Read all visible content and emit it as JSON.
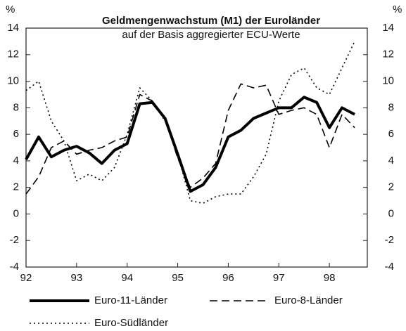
{
  "chart_data": {
    "type": "line",
    "title": "Geldmengenwachstum (M1) der Euroländer",
    "subtitle": "auf der Basis aggregierter ECU-Werte",
    "y_unit": "%",
    "y2_unit": "%",
    "x": [
      92,
      92.25,
      92.5,
      92.75,
      93,
      93.25,
      93.5,
      93.75,
      94,
      94.25,
      94.5,
      94.75,
      95,
      95.25,
      95.5,
      95.75,
      96,
      96.25,
      96.5,
      96.75,
      97,
      97.25,
      97.5,
      97.75,
      98,
      98.25,
      98.5
    ],
    "xlim": [
      92,
      98.75
    ],
    "xticks": [
      92,
      93,
      94,
      95,
      96,
      97,
      98
    ],
    "ylim": [
      -4,
      14
    ],
    "yticks": [
      -4,
      -2,
      0,
      2,
      4,
      6,
      8,
      10,
      12,
      14
    ],
    "y2lim": [
      -4,
      14
    ],
    "y2ticks": [
      -4,
      -2,
      0,
      2,
      4,
      6,
      8,
      10,
      12,
      14
    ],
    "series": [
      {
        "name": "Euro-11-Länder",
        "color": "#000000",
        "style": "solid",
        "values": [
          4.1,
          5.8,
          4.3,
          4.8,
          5.1,
          4.6,
          3.8,
          4.8,
          5.3,
          8.3,
          8.4,
          7.2,
          4.5,
          1.7,
          2.2,
          3.5,
          5.8,
          6.3,
          7.2,
          7.6,
          8.0,
          8.0,
          8.8,
          8.4,
          6.5,
          8.0,
          7.5
        ]
      },
      {
        "name": "Euro-8-Länder",
        "color": "#000000",
        "style": "dashed",
        "values": [
          1.5,
          2.8,
          5.0,
          5.5,
          4.5,
          4.8,
          5.0,
          5.5,
          5.8,
          9.0,
          8.5,
          7.2,
          4.2,
          2.0,
          2.7,
          3.8,
          7.8,
          9.8,
          9.5,
          9.7,
          7.5,
          7.8,
          8.0,
          7.5,
          5.0,
          7.5,
          6.5
        ]
      },
      {
        "name": "Euro-Südländer",
        "color": "#000000",
        "style": "dotted",
        "values": [
          9.3,
          10.0,
          7.0,
          5.5,
          2.5,
          3.0,
          2.5,
          3.5,
          6.0,
          9.5,
          8.5,
          7.0,
          4.5,
          1.0,
          0.8,
          1.3,
          1.5,
          1.5,
          2.8,
          4.5,
          8.5,
          10.5,
          11.0,
          9.5,
          9.0,
          11.0,
          13.0
        ]
      }
    ]
  }
}
